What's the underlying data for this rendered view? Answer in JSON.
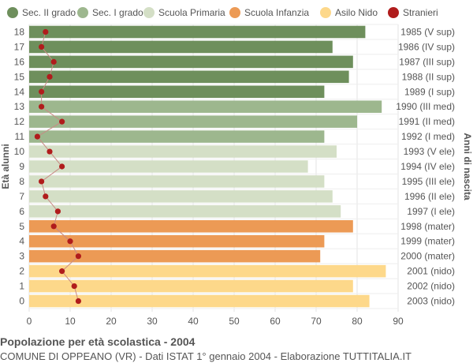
{
  "chart_data": {
    "type": "bar",
    "orientation": "horizontal",
    "title": "Popolazione per età scolastica - 2004",
    "subtitle": "COMUNE DI OPPEANO (VR) - Dati ISTAT 1° gennaio 2004 - Elaborazione TUTTITALIA.IT",
    "ylabel_left": "Età alunni",
    "ylabel_right": "Anni di nascita",
    "xlim": [
      0,
      90
    ],
    "xticks": [
      0,
      10,
      20,
      30,
      40,
      50,
      60,
      70,
      80,
      90
    ],
    "grid": true,
    "legend_position": "top",
    "legend": [
      {
        "label": "Sec. II grado",
        "color": "#6e8f5c"
      },
      {
        "label": "Sec. I grado",
        "color": "#9db78e"
      },
      {
        "label": "Scuola Primaria",
        "color": "#d4dfc6"
      },
      {
        "label": "Scuola Infanzia",
        "color": "#ec9a55"
      },
      {
        "label": "Asilo Nido",
        "color": "#fdd88a"
      },
      {
        "label": "Stranieri",
        "color": "#b01c1c"
      }
    ],
    "categories": [
      "18",
      "17",
      "16",
      "15",
      "14",
      "13",
      "12",
      "11",
      "10",
      "9",
      "8",
      "7",
      "6",
      "5",
      "4",
      "3",
      "2",
      "1",
      "0"
    ],
    "birth_years": [
      "1985 (V sup)",
      "1986 (IV sup)",
      "1987 (III sup)",
      "1988 (II sup)",
      "1989 (I sup)",
      "1990 (III med)",
      "1991 (II med)",
      "1992 (I med)",
      "1993 (V ele)",
      "1994 (IV ele)",
      "1995 (III ele)",
      "1996 (II ele)",
      "1997 (I ele)",
      "1998 (mater)",
      "1999 (mater)",
      "2000 (mater)",
      "2001 (nido)",
      "2002 (nido)",
      "2003 (nido)"
    ],
    "series": [
      {
        "name": "Popolazione",
        "values": [
          82,
          74,
          79,
          78,
          72,
          86,
          80,
          72,
          75,
          68,
          72,
          74,
          76,
          79,
          72,
          71,
          87,
          79,
          83
        ]
      },
      {
        "name": "Stranieri",
        "values": [
          4,
          3,
          6,
          5,
          3,
          3,
          8,
          2,
          5,
          8,
          3,
          4,
          7,
          6,
          10,
          12,
          8,
          11,
          12
        ]
      }
    ],
    "group_of_bar": [
      0,
      0,
      0,
      0,
      0,
      1,
      1,
      1,
      2,
      2,
      2,
      2,
      2,
      3,
      3,
      3,
      4,
      4,
      4
    ]
  }
}
